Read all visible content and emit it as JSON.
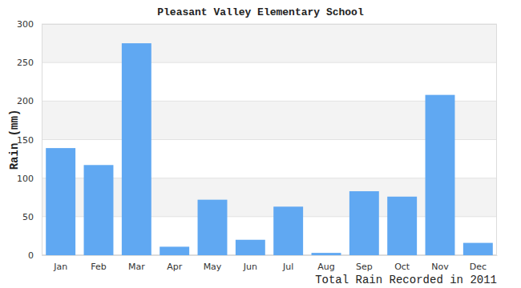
{
  "chart_data": {
    "type": "bar",
    "title": "Pleasant Valley Elementary School",
    "y_label": "Rain (mm)",
    "x_label": "Total Rain Recorded in 2011",
    "categories": [
      "Jan",
      "Feb",
      "Mar",
      "Apr",
      "May",
      "Jun",
      "Jul",
      "Aug",
      "Sep",
      "Oct",
      "Nov",
      "Dec"
    ],
    "values": [
      139,
      117,
      275,
      11,
      72,
      20,
      63,
      3,
      83,
      76,
      208,
      16
    ],
    "color": "#60a8f2",
    "ylim": [
      0,
      300
    ],
    "yticks": [
      0,
      50,
      100,
      150,
      200,
      250,
      300
    ],
    "grid": true
  }
}
